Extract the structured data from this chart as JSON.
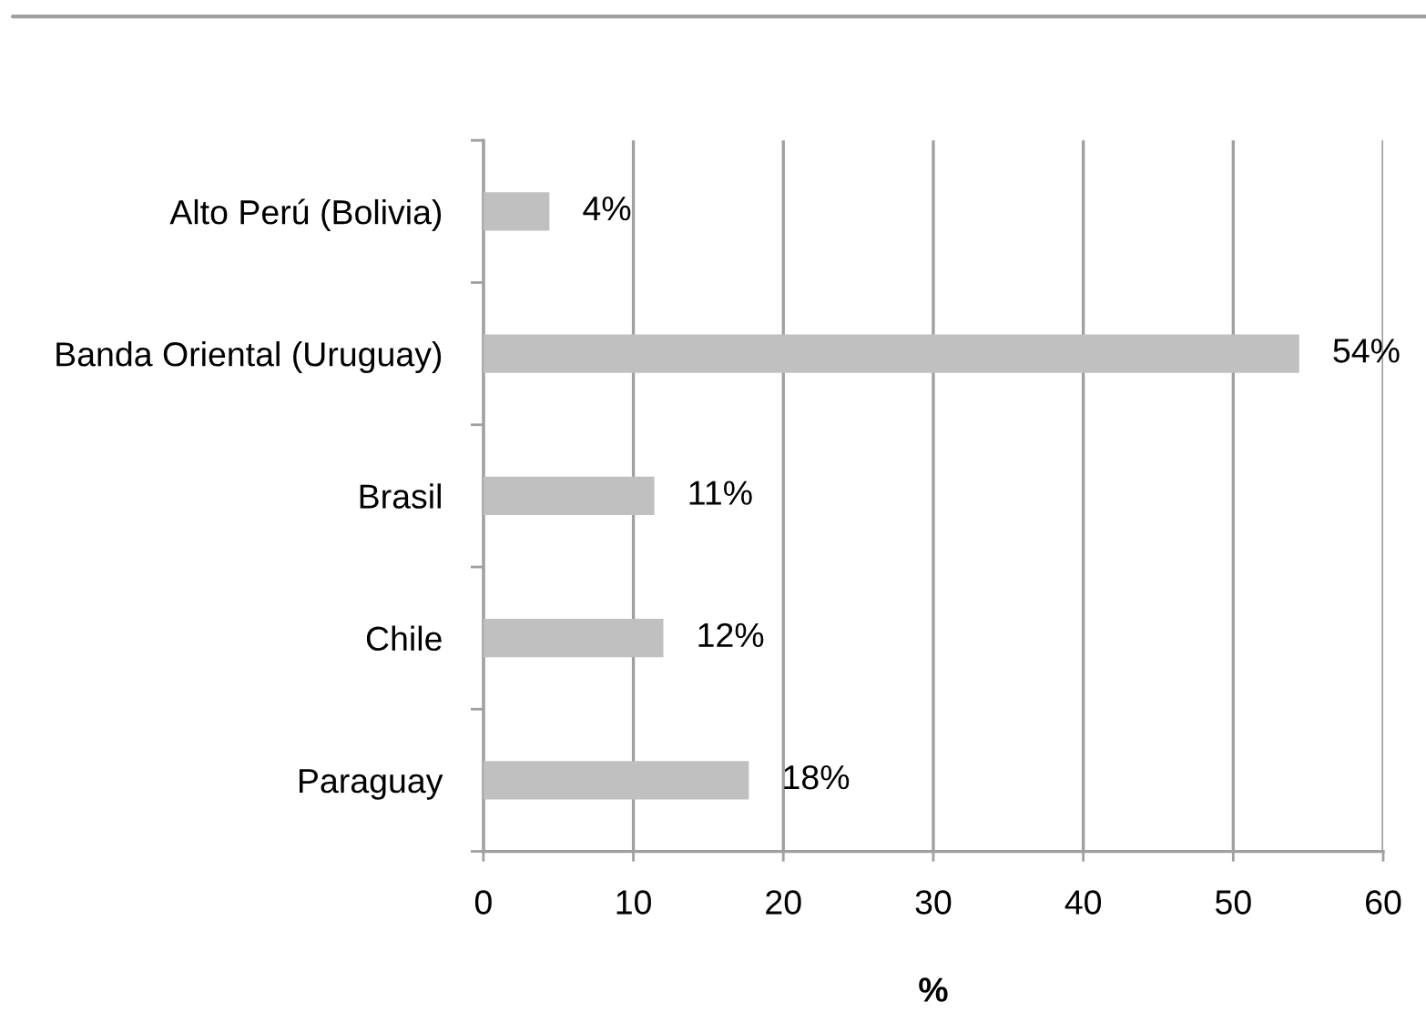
{
  "chart_data": {
    "type": "bar",
    "orientation": "horizontal",
    "categories": [
      "Alto Perú (Bolivia)",
      "Banda Oriental (Uruguay)",
      "Brasil",
      "Chile",
      "Paraguay"
    ],
    "values": [
      4.4,
      54.4,
      11.4,
      12.0,
      17.7
    ],
    "value_labels": [
      "4%",
      "54%",
      "11%",
      "12%",
      "18%"
    ],
    "color": "#c0c0c0",
    "xlabel": "%",
    "xlim": [
      0,
      60
    ],
    "xticks": [
      0,
      10,
      20,
      30,
      40,
      50,
      60
    ],
    "grid": "x"
  }
}
